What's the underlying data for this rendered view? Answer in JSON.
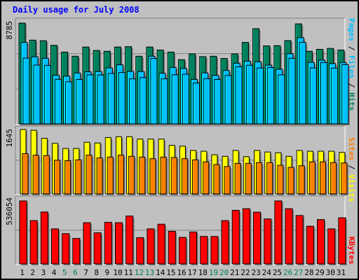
{
  "title": "Daily usage for July 2008",
  "colors": {
    "background": "#c0c0c0",
    "hits": "#00805c",
    "files": "#00c0ff",
    "pages": "#00c0ff",
    "visits": "#ffff00",
    "sites": "#ff8000",
    "kbytes": "#ff0000",
    "weekday_label": "#000000",
    "weekend_label": "#00805c"
  },
  "legend": {
    "pages_label": "Pages",
    "files_label": "Files",
    "hits_label": "Hits",
    "sites_label": "Sites",
    "visits_label": "Visits",
    "kbytes_label": "KBytes",
    "separator": " / "
  },
  "chart_data": [
    {
      "type": "bar",
      "title": "Daily usage for July 2008",
      "categories": [
        "1",
        "2",
        "3",
        "4",
        "5",
        "6",
        "7",
        "8",
        "9",
        "10",
        "11",
        "12",
        "13",
        "14",
        "15",
        "16",
        "17",
        "18",
        "19",
        "20",
        "21",
        "22",
        "23",
        "24",
        "25",
        "26",
        "27",
        "28",
        "29",
        "30",
        "31"
      ],
      "weekend_days": [
        "5",
        "6",
        "12",
        "13",
        "19",
        "20",
        "26",
        "27"
      ],
      "ymax_label": "8785",
      "ylim": [
        0,
        8785
      ],
      "series": [
        {
          "name": "Hits",
          "values": [
            8785,
            7300,
            7250,
            6850,
            6260,
            5900,
            6700,
            6400,
            6330,
            6700,
            6730,
            5900,
            6700,
            6440,
            6260,
            5600,
            6100,
            5860,
            5900,
            5700,
            6100,
            7100,
            8300,
            6800,
            6820,
            7260,
            8720,
            6330,
            6500,
            6580,
            6440
          ]
        },
        {
          "name": "Files",
          "values": [
            7100,
            5850,
            5720,
            4250,
            4160,
            4440,
            4540,
            4570,
            4880,
            5150,
            4580,
            4570,
            5900,
            4410,
            4920,
            4840,
            3880,
            4450,
            4230,
            4660,
            5290,
            5470,
            5410,
            5120,
            4760,
            6120,
            7520,
            5360,
            5560,
            5260,
            5350
          ]
        },
        {
          "name": "Pages",
          "values": [
            5730,
            5130,
            5100,
            3880,
            3670,
            3880,
            4280,
            4260,
            4400,
            4480,
            3930,
            4040,
            5700,
            3930,
            4280,
            4330,
            3560,
            3940,
            3880,
            4220,
            4980,
            5110,
            4870,
            4910,
            4280,
            5720,
            7110,
            4880,
            5350,
            4860,
            5170
          ]
        }
      ]
    },
    {
      "type": "bar",
      "ymax_label": "1645",
      "ylim": [
        0,
        1645
      ],
      "series": [
        {
          "name": "Visits",
          "values": [
            1645,
            1625,
            1420,
            1290,
            1160,
            1160,
            1320,
            1300,
            1440,
            1460,
            1460,
            1400,
            1400,
            1400,
            1240,
            1220,
            1110,
            1090,
            1000,
            960,
            1110,
            950,
            1110,
            1070,
            1050,
            960,
            1110,
            1090,
            1090,
            1090,
            1060
          ]
        },
        {
          "name": "Sites",
          "values": [
            1030,
            990,
            980,
            860,
            850,
            870,
            990,
            920,
            940,
            990,
            960,
            940,
            900,
            940,
            930,
            900,
            870,
            820,
            750,
            700,
            780,
            780,
            800,
            800,
            730,
            680,
            720,
            820,
            820,
            800,
            790
          ]
        }
      ]
    },
    {
      "type": "bar",
      "ymax_label": "536054",
      "ylim": [
        0,
        536054
      ],
      "series": [
        {
          "name": "KBytes",
          "values": [
            536054,
            368500,
            441800,
            298400,
            257600,
            216800,
            350700,
            264800,
            353600,
            350700,
            407800,
            223600,
            298400,
            338100,
            277600,
            225600,
            272000,
            233700,
            233700,
            368500,
            456000,
            469800,
            440200,
            382400,
            536054,
            469800,
            412000,
            320800,
            377200,
            298400,
            392600
          ]
        }
      ]
    }
  ]
}
